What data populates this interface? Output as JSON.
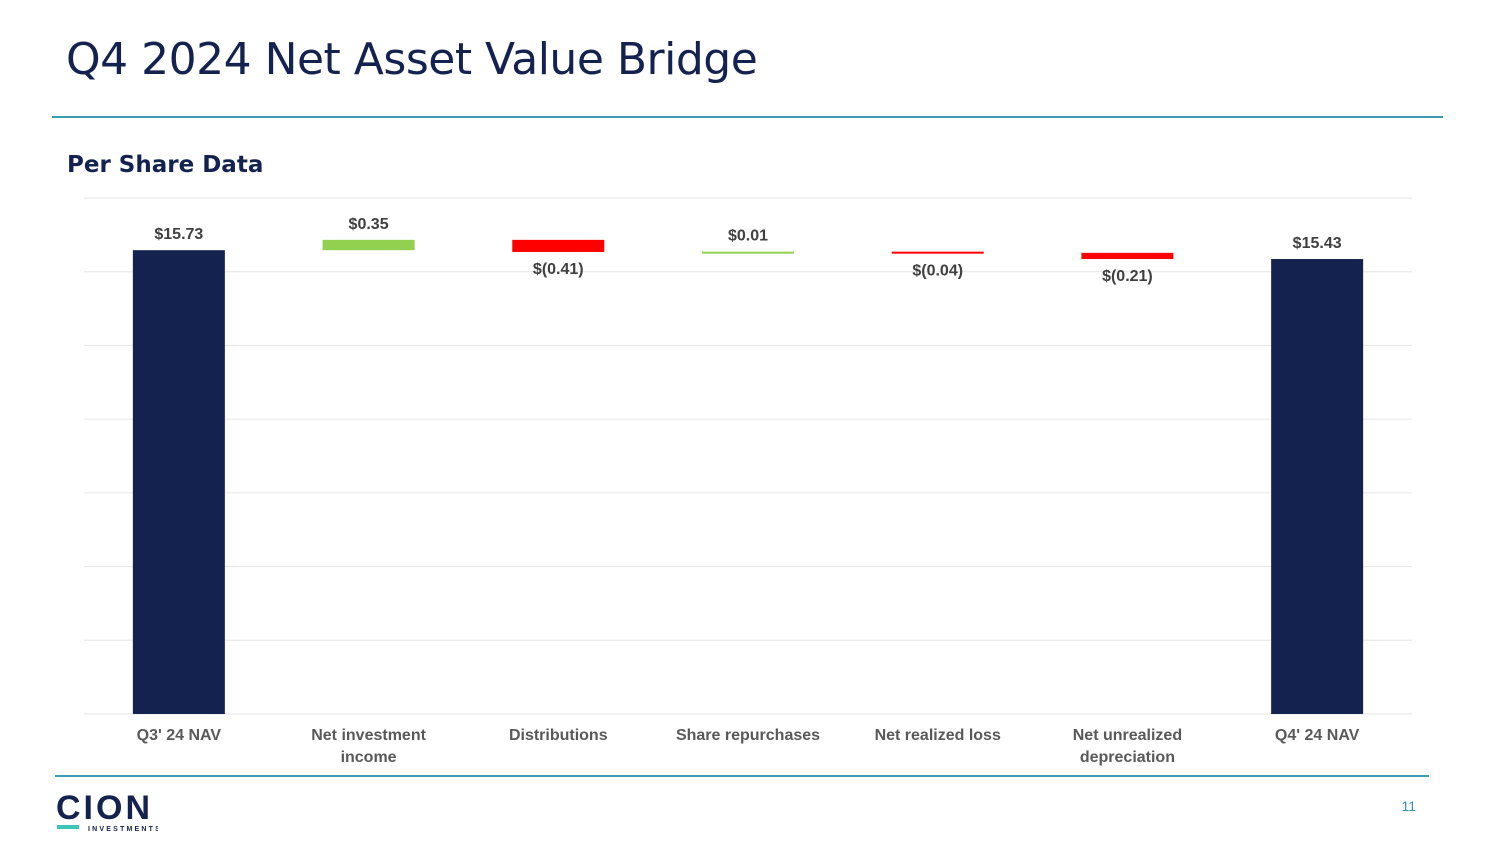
{
  "slide": {
    "title": "Q4 2024 Net Asset Value Bridge",
    "subtitle": "Per Share Data",
    "page_number": "11"
  },
  "logo": {
    "brand": "CION",
    "tagline": "INVESTMENTS",
    "brand_color": "#14224f",
    "accent_color": "#3cc6b8"
  },
  "colors": {
    "total": "#14224f",
    "increase": "#92d050",
    "decrease": "#ff0000",
    "rule": "#3a9bb9",
    "grid": "#e6e6e6"
  },
  "chart_data": {
    "type": "bar",
    "subtype": "waterfall",
    "title": "",
    "xlabel": "",
    "ylabel": "",
    "grid": true,
    "legend": "none",
    "categories": [
      "Q3' 24 NAV",
      "Net investment income",
      "Distributions",
      "Share repurchases",
      "Net realized loss",
      "Net unrealized depreciation",
      "Q4' 24 NAV"
    ],
    "values": [
      15.73,
      0.35,
      -0.41,
      0.01,
      -0.04,
      -0.21,
      15.43
    ],
    "kinds": [
      "total",
      "increase",
      "decrease",
      "increase",
      "decrease",
      "decrease",
      "total"
    ],
    "data_labels": [
      "$15.73",
      "$0.35",
      "$(0.41)",
      "$0.01",
      "$(0.04)",
      "$(0.21)",
      "$15.43"
    ],
    "ylim": [
      0,
      17.5
    ]
  }
}
